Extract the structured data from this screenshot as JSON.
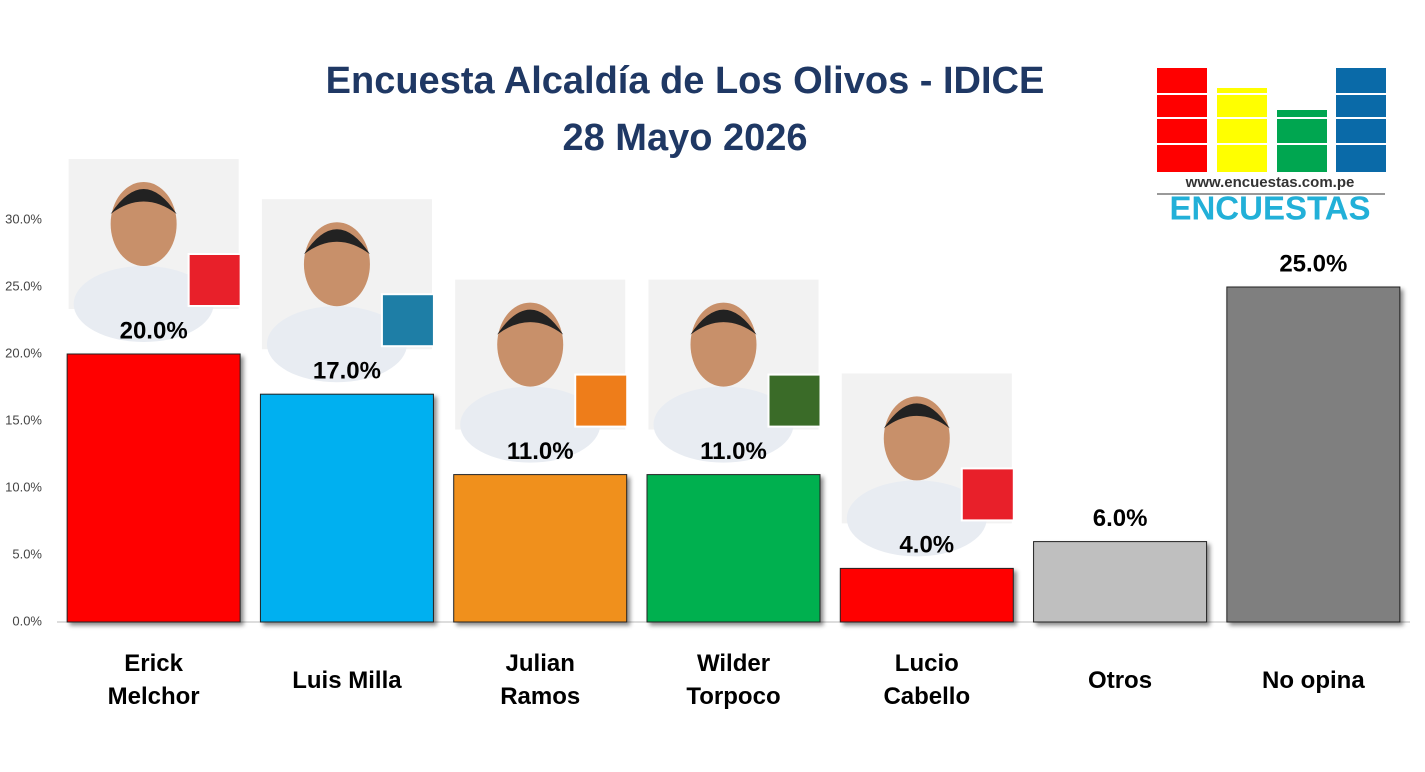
{
  "chart_data": {
    "type": "bar",
    "title": "Encuesta Alcaldía de Los Olivos - IDICE",
    "subtitle": "28 Mayo 2026",
    "categories": [
      "Erick Melchor",
      "Luis Milla",
      "Julian Ramos",
      "Wilder Torpoco",
      "Lucio Cabello",
      "Otros",
      "No opina"
    ],
    "values": [
      20,
      17,
      11,
      11,
      4,
      6,
      25
    ],
    "value_labels": [
      "20.0%",
      "17.0%",
      "11.0%",
      "11.0%",
      "4.0%",
      "6.0%",
      "25.0%"
    ],
    "colors": [
      "#ff0000",
      "#00b0f0",
      "#f0901a",
      "#00b050",
      "#ff0000",
      "#bfbfbf",
      "#7f7f7f"
    ],
    "ylim": [
      0,
      30
    ],
    "yticks": [
      {
        "value": 0,
        "label": "0.0%"
      },
      {
        "value": 5,
        "label": "5.0%"
      },
      {
        "value": 10,
        "label": "10.0%"
      },
      {
        "value": 15,
        "label": "15.0%"
      },
      {
        "value": 20,
        "label": "20.0%"
      },
      {
        "value": 25,
        "label": "25.0%"
      },
      {
        "value": 30,
        "label": "30.0%"
      }
    ],
    "grid": false
  },
  "logo": {
    "url": "www.encuestas.com.pe",
    "name": "ENCUESTAS"
  }
}
